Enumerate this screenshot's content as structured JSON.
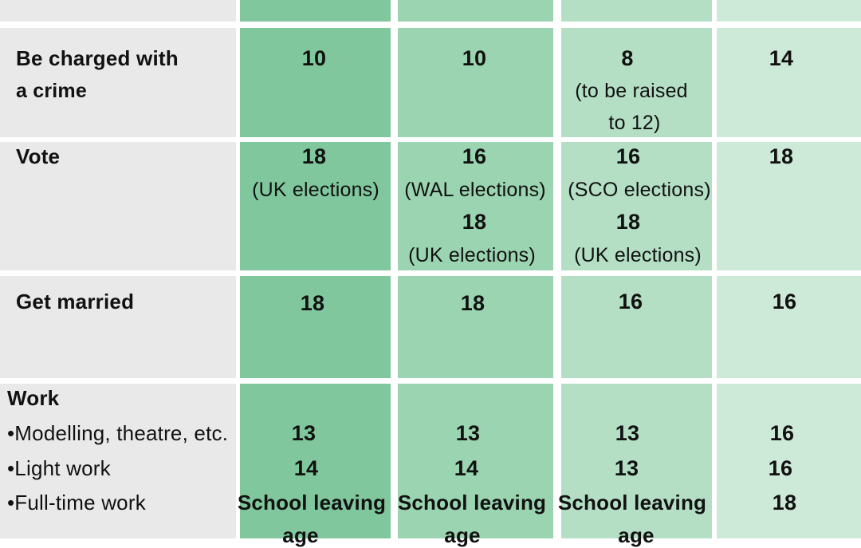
{
  "rows": {
    "charged": {
      "label_line1": "Be charged with",
      "label_line2": "a crime",
      "col1": "10",
      "col2": "10",
      "col3": "8",
      "col3_note_line1": "(to be raised",
      "col3_note_line2": "to 12)",
      "col4": "14"
    },
    "vote": {
      "label": "Vote",
      "col1": "18",
      "col1_note": "(UK elections)",
      "col2": "16",
      "col2_note": "(WAL elections)",
      "col2_b": "18",
      "col2_b_note": "(UK elections)",
      "col3": "16",
      "col3_note": "(SCO elections)",
      "col3_b": "18",
      "col3_b_note": "(UK elections)",
      "col4": "18"
    },
    "married": {
      "label": "Get married",
      "col1": "18",
      "col2": "18",
      "col3": "16",
      "col4": "16"
    },
    "work": {
      "label": "Work",
      "items": [
        {
          "label": "•Modelling, theatre, etc.",
          "col1": "13",
          "col2": "13",
          "col3": "13",
          "col4": "16"
        },
        {
          "label": "•Light work",
          "col1": "14",
          "col2": "14",
          "col3": "13",
          "col4": "16"
        },
        {
          "label": "•Full-time work",
          "col1": "School leaving",
          "col2": "School leaving",
          "col3": "School leaving",
          "col4": "18"
        }
      ],
      "age_word": "age"
    }
  },
  "colors": {
    "label_bg": "#e9e9e9",
    "col1": "#80c79d",
    "col2": "#9bd4b1",
    "col3": "#b4dfc5",
    "col4": "#cde9d8"
  }
}
